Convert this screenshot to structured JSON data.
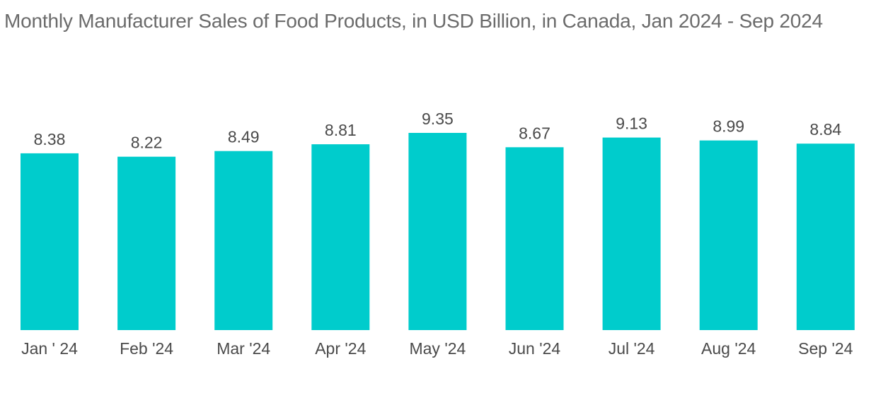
{
  "chart_data": {
    "type": "bar",
    "title": "Monthly Manufacturer Sales of Food Products, in USD Billion, in Canada, Jan 2024 - Sep 2024",
    "categories": [
      "Jan ' 24",
      "Feb '24",
      "Mar '24",
      "Apr '24",
      "May '24",
      "Jun '24",
      "Jul '24",
      "Aug '24",
      "Sep '24"
    ],
    "values": [
      8.38,
      8.22,
      8.49,
      8.81,
      9.35,
      8.67,
      9.13,
      8.99,
      8.84
    ],
    "value_labels": [
      "8.38",
      "8.22",
      "8.49",
      "8.81",
      "9.35",
      "8.67",
      "9.13",
      "8.99",
      "8.84"
    ],
    "xlabel": "",
    "ylabel": "",
    "ylim": [
      0,
      9.35
    ],
    "grid": false,
    "legend": "none",
    "bar_color": "#00CCCC"
  }
}
